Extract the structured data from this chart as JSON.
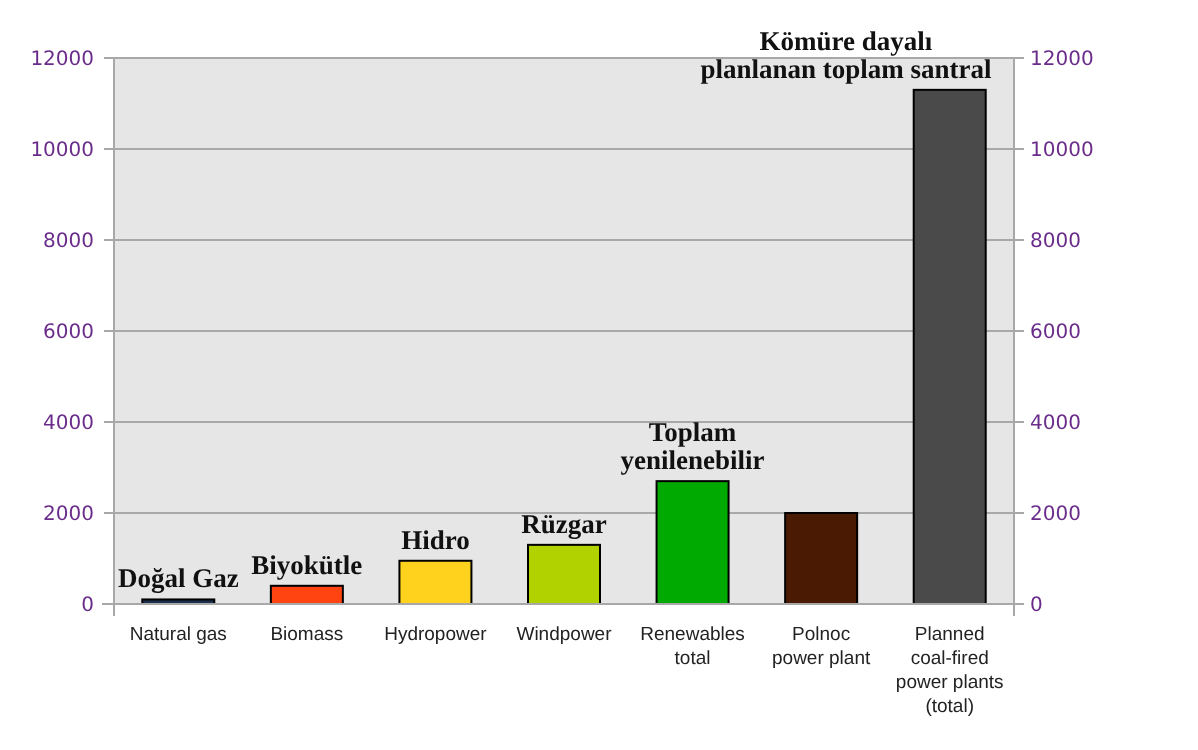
{
  "chart_data": {
    "type": "bar",
    "categories": [
      "Natural gas",
      "Biomass",
      "Hydropower",
      "Windpower",
      "Renewables\ntotal",
      "Polnoc\npower plant",
      "Planned\ncoal-fired\npower plants\n(total)"
    ],
    "values": [
      100,
      400,
      950,
      1300,
      2700,
      2000,
      11300
    ],
    "colors": [
      "#1c2f4a",
      "#ff4412",
      "#ffd21e",
      "#b2d200",
      "#00aa00",
      "#4a1a02",
      "#4a4a4a"
    ],
    "ylim": [
      0,
      12000
    ],
    "yticks": [
      0,
      2000,
      4000,
      6000,
      8000,
      10000,
      12000
    ],
    "y2lim": [
      0,
      12000
    ],
    "y2ticks": [
      0,
      2000,
      4000,
      6000,
      8000,
      10000,
      12000
    ],
    "grid": "y",
    "annotations": [
      {
        "text": "Doğal Gaz",
        "x": "Natural gas",
        "y": 100
      },
      {
        "text": "Biyokütle",
        "x": "Biomass",
        "y": 400
      },
      {
        "text": "Hidro",
        "x": "Hydropower",
        "y": 950
      },
      {
        "text": "Rüzgar",
        "x": "Windpower",
        "y": 1300
      },
      {
        "text": "Toplam\nyenilenebilir",
        "x": "Renewables\ntotal",
        "y": 2700
      },
      {
        "text": "Kömüre dayalı\nplanlanan toplam santral",
        "x": "Planned\ncoal-fired\npower plants\n(total)",
        "y": 11300
      }
    ]
  }
}
